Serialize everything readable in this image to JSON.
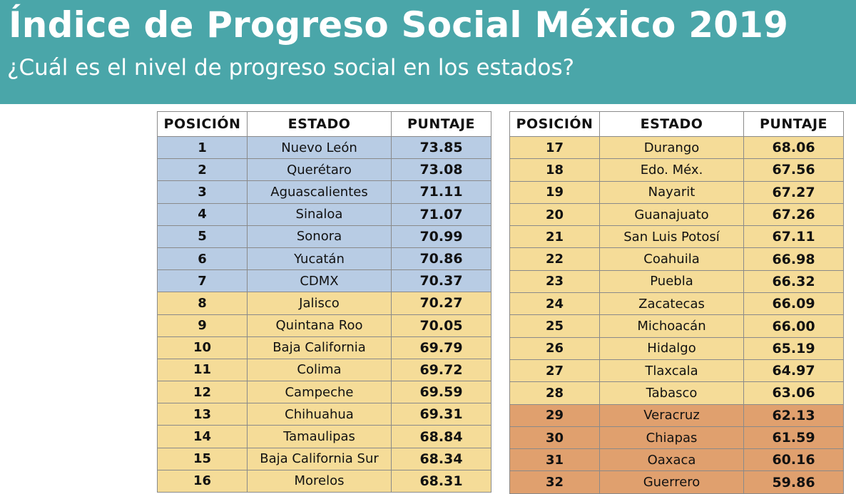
{
  "header": {
    "title": "Índice de Progreso Social México 2019",
    "subtitle": "¿Cuál es el nivel de progreso social en los estados?"
  },
  "colors": {
    "banner": "#4aa6a9",
    "tier_high": "#b8cce4",
    "tier_mid": "#f5dc98",
    "tier_low": "#e0a06e"
  },
  "tables": [
    {
      "columns": [
        "POSICIÓN",
        "ESTADO",
        "PUNTAJE"
      ],
      "rows": [
        {
          "pos": "1",
          "state": "Nuevo León",
          "score": "73.85",
          "tier": "high"
        },
        {
          "pos": "2",
          "state": "Querétaro",
          "score": "73.08",
          "tier": "high"
        },
        {
          "pos": "3",
          "state": "Aguascalientes",
          "score": "71.11",
          "tier": "high"
        },
        {
          "pos": "4",
          "state": "Sinaloa",
          "score": "71.07",
          "tier": "high"
        },
        {
          "pos": "5",
          "state": "Sonora",
          "score": "70.99",
          "tier": "high"
        },
        {
          "pos": "6",
          "state": "Yucatán",
          "score": "70.86",
          "tier": "high"
        },
        {
          "pos": "7",
          "state": "CDMX",
          "score": "70.37",
          "tier": "high"
        },
        {
          "pos": "8",
          "state": "Jalisco",
          "score": "70.27",
          "tier": "mid"
        },
        {
          "pos": "9",
          "state": "Quintana Roo",
          "score": "70.05",
          "tier": "mid"
        },
        {
          "pos": "10",
          "state": "Baja California",
          "score": "69.79",
          "tier": "mid"
        },
        {
          "pos": "11",
          "state": "Colima",
          "score": "69.72",
          "tier": "mid"
        },
        {
          "pos": "12",
          "state": "Campeche",
          "score": "69.59",
          "tier": "mid"
        },
        {
          "pos": "13",
          "state": "Chihuahua",
          "score": "69.31",
          "tier": "mid"
        },
        {
          "pos": "14",
          "state": "Tamaulipas",
          "score": "68.84",
          "tier": "mid"
        },
        {
          "pos": "15",
          "state": "Baja California Sur",
          "score": "68.34",
          "tier": "mid"
        },
        {
          "pos": "16",
          "state": "Morelos",
          "score": "68.31",
          "tier": "mid"
        }
      ]
    },
    {
      "columns": [
        "POSICIÓN",
        "ESTADO",
        "PUNTAJE"
      ],
      "rows": [
        {
          "pos": "17",
          "state": "Durango",
          "score": "68.06",
          "tier": "mid"
        },
        {
          "pos": "18",
          "state": "Edo. Méx.",
          "score": "67.56",
          "tier": "mid"
        },
        {
          "pos": "19",
          "state": "Nayarit",
          "score": "67.27",
          "tier": "mid"
        },
        {
          "pos": "20",
          "state": "Guanajuato",
          "score": "67.26",
          "tier": "mid"
        },
        {
          "pos": "21",
          "state": "San Luis Potosí",
          "score": "67.11",
          "tier": "mid"
        },
        {
          "pos": "22",
          "state": "Coahuila",
          "score": "66.98",
          "tier": "mid"
        },
        {
          "pos": "23",
          "state": "Puebla",
          "score": "66.32",
          "tier": "mid"
        },
        {
          "pos": "24",
          "state": "Zacatecas",
          "score": "66.09",
          "tier": "mid"
        },
        {
          "pos": "25",
          "state": "Michoacán",
          "score": "66.00",
          "tier": "mid"
        },
        {
          "pos": "26",
          "state": "Hidalgo",
          "score": "65.19",
          "tier": "mid"
        },
        {
          "pos": "27",
          "state": "Tlaxcala",
          "score": "64.97",
          "tier": "mid"
        },
        {
          "pos": "28",
          "state": "Tabasco",
          "score": "63.06",
          "tier": "mid"
        },
        {
          "pos": "29",
          "state": "Veracruz",
          "score": "62.13",
          "tier": "low"
        },
        {
          "pos": "30",
          "state": "Chiapas",
          "score": "61.59",
          "tier": "low"
        },
        {
          "pos": "31",
          "state": "Oaxaca",
          "score": "60.16",
          "tier": "low"
        },
        {
          "pos": "32",
          "state": "Guerrero",
          "score": "59.86",
          "tier": "low"
        }
      ]
    }
  ]
}
